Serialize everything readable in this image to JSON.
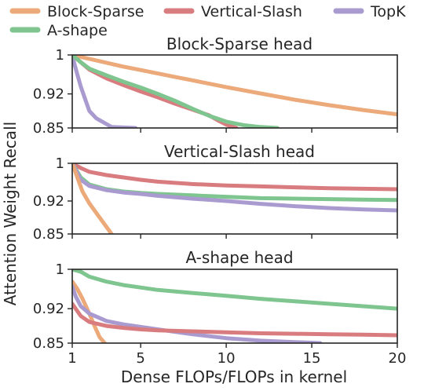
{
  "chart_data": {
    "type": "line",
    "xlabel": "Dense FLOPs/FLOPs in kernel",
    "ylabel": "Attention Weight Recall",
    "xlim": [
      1,
      20
    ],
    "ylim": [
      0.85,
      1.0
    ],
    "xticks": [
      1,
      5,
      10,
      15,
      20
    ],
    "xtick_labels": [
      "1",
      "5",
      "10",
      "15",
      "20"
    ],
    "yticks": [
      1.0,
      0.92,
      0.85
    ],
    "ytick_labels": [
      "1",
      "0.92",
      "0.85"
    ],
    "grid": false,
    "legend_placement": "top",
    "legend": [
      {
        "name": "Block-Sparse",
        "color": "#eca97a"
      },
      {
        "name": "Vertical-Slash",
        "color": "#d97c7f"
      },
      {
        "name": "TopK",
        "color": "#a99bd0"
      },
      {
        "name": "A-shape",
        "color": "#7fc58f"
      }
    ],
    "panels": [
      {
        "title": "Block-Sparse head",
        "series": [
          {
            "name": "Block-Sparse",
            "x": [
              1,
              2,
              3,
              4,
              5,
              6,
              7,
              8,
              9,
              10,
              12,
              14,
              16,
              18,
              20
            ],
            "y": [
              1.0,
              0.992,
              0.984,
              0.976,
              0.969,
              0.962,
              0.955,
              0.948,
              0.941,
              0.934,
              0.921,
              0.908,
              0.897,
              0.887,
              0.878
            ]
          },
          {
            "name": "Vertical-Slash",
            "x": [
              1,
              1.5,
              2,
              3,
              4,
              5,
              6,
              7,
              8,
              9,
              9.5,
              10,
              10.6
            ],
            "y": [
              1.0,
              0.985,
              0.97,
              0.952,
              0.938,
              0.925,
              0.913,
              0.9,
              0.888,
              0.876,
              0.866,
              0.857,
              0.85
            ]
          },
          {
            "name": "TopK",
            "x": [
              1,
              1.1,
              1.3,
              1.5,
              1.8,
              2.0,
              2.4,
              3.0,
              3.3,
              4.7
            ],
            "y": [
              1.0,
              0.985,
              0.96,
              0.935,
              0.905,
              0.885,
              0.87,
              0.858,
              0.852,
              0.85
            ]
          },
          {
            "name": "A-shape",
            "x": [
              1,
              1.5,
              2,
              3,
              4,
              5,
              6,
              7,
              8,
              9,
              10,
              11,
              12,
              13
            ],
            "y": [
              1.0,
              0.985,
              0.972,
              0.958,
              0.945,
              0.933,
              0.92,
              0.906,
              0.89,
              0.875,
              0.863,
              0.856,
              0.852,
              0.85
            ]
          }
        ]
      },
      {
        "title": "Vertical-Slash head",
        "series": [
          {
            "name": "Vertical-Slash",
            "x": [
              1,
              1.5,
              2,
              3,
              4,
              5,
              6,
              8,
              10,
              12,
              14,
              16,
              18,
              20
            ],
            "y": [
              1.0,
              0.99,
              0.982,
              0.975,
              0.97,
              0.965,
              0.961,
              0.956,
              0.953,
              0.951,
              0.949,
              0.947,
              0.946,
              0.945
            ]
          },
          {
            "name": "A-shape",
            "x": [
              1,
              1.5,
              2,
              3,
              4,
              5,
              6,
              8,
              10,
              12,
              14,
              16,
              18,
              20
            ],
            "y": [
              1.0,
              0.97,
              0.955,
              0.945,
              0.94,
              0.937,
              0.935,
              0.932,
              0.929,
              0.926,
              0.925,
              0.924,
              0.923,
              0.922
            ]
          },
          {
            "name": "TopK",
            "x": [
              1,
              1.5,
              2,
              3,
              4,
              5,
              6,
              8,
              10,
              12,
              14,
              16,
              18,
              20
            ],
            "y": [
              1.0,
              0.965,
              0.952,
              0.943,
              0.938,
              0.935,
              0.931,
              0.925,
              0.92,
              0.914,
              0.909,
              0.905,
              0.902,
              0.9
            ]
          },
          {
            "name": "Block-Sparse",
            "x": [
              1,
              1.3,
              1.6,
              2.0,
              2.4,
              2.8,
              3.1,
              3.3
            ],
            "y": [
              1.0,
              0.97,
              0.94,
              0.915,
              0.895,
              0.875,
              0.86,
              0.85
            ]
          }
        ]
      },
      {
        "title": "A-shape head",
        "series": [
          {
            "name": "A-shape",
            "x": [
              1,
              1.5,
              2,
              3,
              4,
              5,
              6,
              8,
              10,
              12,
              14,
              16,
              18,
              20
            ],
            "y": [
              1.0,
              0.995,
              0.985,
              0.975,
              0.968,
              0.963,
              0.958,
              0.952,
              0.946,
              0.94,
              0.935,
              0.93,
              0.925,
              0.92
            ]
          },
          {
            "name": "Block-Sparse",
            "x": [
              1,
              1.3,
              1.6,
              2.0,
              2.3,
              2.6,
              2.9
            ],
            "y": [
              0.975,
              0.96,
              0.94,
              0.91,
              0.885,
              0.862,
              0.85
            ]
          },
          {
            "name": "TopK",
            "x": [
              1,
              1.2,
              1.5,
              2,
              3,
              4,
              5,
              6,
              8,
              10,
              12,
              14,
              15.5
            ],
            "y": [
              0.965,
              0.945,
              0.925,
              0.91,
              0.895,
              0.888,
              0.883,
              0.878,
              0.868,
              0.86,
              0.855,
              0.852,
              0.85
            ]
          },
          {
            "name": "Vertical-Slash",
            "x": [
              1,
              1.5,
              2,
              3,
              4,
              5,
              6,
              8,
              10,
              12,
              14,
              16,
              18,
              20
            ],
            "y": [
              0.93,
              0.905,
              0.893,
              0.885,
              0.881,
              0.878,
              0.876,
              0.874,
              0.872,
              0.87,
              0.869,
              0.868,
              0.867,
              0.866
            ]
          }
        ]
      }
    ]
  }
}
